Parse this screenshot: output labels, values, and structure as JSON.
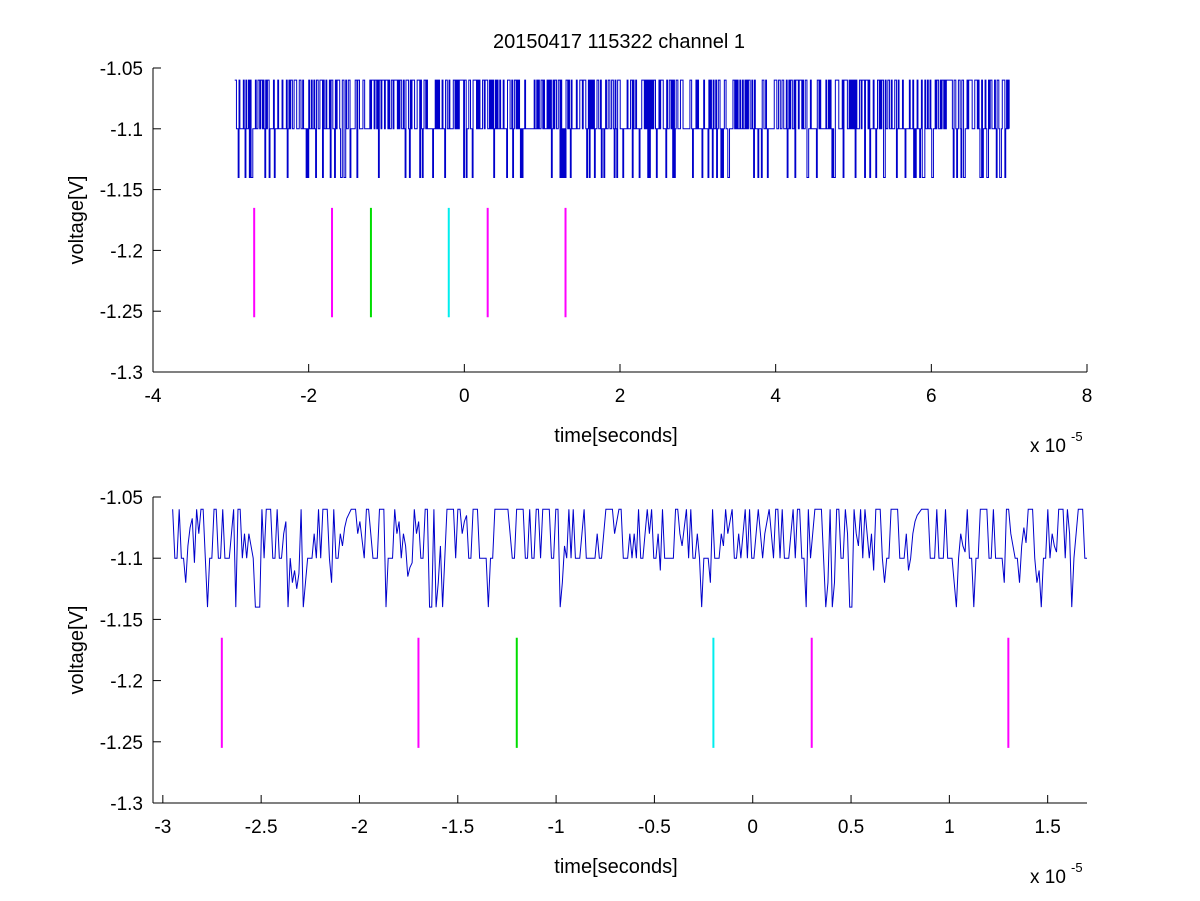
{
  "title": "20150417 115322 channel 1",
  "chart_data": [
    {
      "type": "line",
      "xlabel": "time[seconds]",
      "ylabel": "voltage[V]",
      "x_multiplier_label": "x 10",
      "x_multiplier_exponent": "-5",
      "xlim": [
        -4e-05,
        8e-05
      ],
      "ylim": [
        -1.3,
        -1.05
      ],
      "x_ticks": [
        -4e-05,
        -2e-05,
        0,
        2e-05,
        4e-05,
        6e-05,
        8e-05
      ],
      "x_tick_labels": [
        "-4",
        "-2",
        "0",
        "2",
        "4",
        "6",
        "8"
      ],
      "y_ticks": [
        -1.3,
        -1.25,
        -1.2,
        -1.15,
        -1.1,
        -1.05
      ],
      "y_tick_labels": [
        "-1.3",
        "-1.25",
        "-1.2",
        "-1.15",
        "-1.1",
        "-1.05"
      ],
      "grid": false,
      "signal": {
        "color": "#0000cc",
        "x_start": -2.95e-05,
        "x_end": 7e-05,
        "levels": [
          -1.06,
          -1.1,
          -1.14
        ],
        "baseline": -1.1
      },
      "markers": [
        {
          "x": -2.7e-05,
          "y_from": -1.255,
          "y_to": -1.165,
          "color": "#ff00ff"
        },
        {
          "x": -1.7e-05,
          "y_from": -1.255,
          "y_to": -1.165,
          "color": "#ff00ff"
        },
        {
          "x": -1.2e-05,
          "y_from": -1.255,
          "y_to": -1.165,
          "color": "#00dd00"
        },
        {
          "x": -2e-06,
          "y_from": -1.255,
          "y_to": -1.165,
          "color": "#00eeee"
        },
        {
          "x": 3e-06,
          "y_from": -1.255,
          "y_to": -1.165,
          "color": "#ff00ff"
        },
        {
          "x": 1.3e-05,
          "y_from": -1.255,
          "y_to": -1.165,
          "color": "#ff00ff"
        }
      ]
    },
    {
      "type": "line",
      "xlabel": "time[seconds]",
      "ylabel": "voltage[V]",
      "x_multiplier_label": "x 10",
      "x_multiplier_exponent": "-5",
      "xlim": [
        -3.05e-05,
        1.7e-05
      ],
      "ylim": [
        -1.3,
        -1.05
      ],
      "x_ticks": [
        -3e-05,
        -2.5e-05,
        -2e-05,
        -1.5e-05,
        -1e-05,
        -5e-06,
        0,
        5e-06,
        1e-05,
        1.5e-05
      ],
      "x_tick_labels": [
        "-3",
        "-2.5",
        "-2",
        "-1.5",
        "-1",
        "-0.5",
        "0",
        "0.5",
        "1",
        "1.5"
      ],
      "y_ticks": [
        -1.3,
        -1.25,
        -1.2,
        -1.15,
        -1.1,
        -1.05
      ],
      "y_tick_labels": [
        "-1.3",
        "-1.25",
        "-1.2",
        "-1.15",
        "-1.1",
        "-1.05"
      ],
      "grid": false,
      "signal": {
        "color": "#0000cc",
        "x_start": -2.95e-05,
        "x_end": 1.7e-05,
        "levels": [
          -1.06,
          -1.1,
          -1.14
        ],
        "baseline": -1.1
      },
      "markers": [
        {
          "x": -2.7e-05,
          "y_from": -1.255,
          "y_to": -1.165,
          "color": "#ff00ff"
        },
        {
          "x": -1.7e-05,
          "y_from": -1.255,
          "y_to": -1.165,
          "color": "#ff00ff"
        },
        {
          "x": -1.2e-05,
          "y_from": -1.255,
          "y_to": -1.165,
          "color": "#00dd00"
        },
        {
          "x": -2e-06,
          "y_from": -1.255,
          "y_to": -1.165,
          "color": "#00eeee"
        },
        {
          "x": 3e-06,
          "y_from": -1.255,
          "y_to": -1.165,
          "color": "#ff00ff"
        },
        {
          "x": 1.3e-05,
          "y_from": -1.255,
          "y_to": -1.165,
          "color": "#ff00ff"
        }
      ]
    }
  ]
}
